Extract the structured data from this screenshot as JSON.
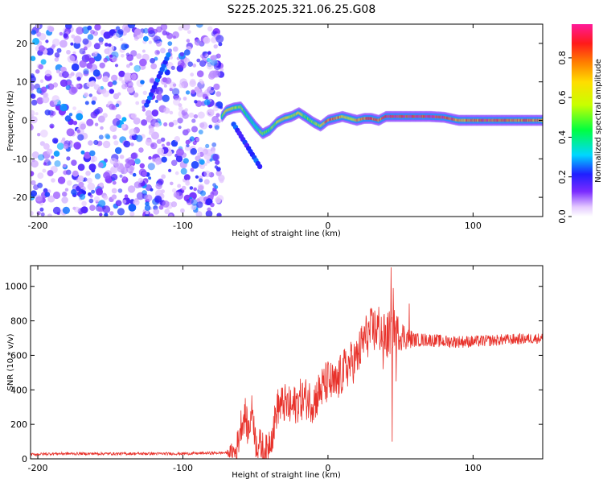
{
  "title": "S225.2025.321.06.25.G08",
  "chart_data": [
    {
      "type": "heatmap",
      "name": "spectrogram",
      "xlabel": "Height of straight line (km)",
      "ylabel": "Frequency (Hz)",
      "xlim": [
        -205,
        148
      ],
      "ylim": [
        -25,
        25
      ],
      "xticks": [
        -200,
        -100,
        0,
        100
      ],
      "xtick_labels": [
        "-200",
        "-100",
        "0",
        "100"
      ],
      "yticks": [
        20,
        10,
        0,
        -10,
        -20
      ],
      "ytick_labels": [
        "20",
        "10",
        "0",
        "-10",
        "-20"
      ],
      "colorbar": {
        "label": "Normalized spectral amplitude",
        "range": [
          0,
          0.97
        ],
        "ticks": [
          0.0,
          0.2,
          0.4,
          0.6,
          0.8
        ],
        "tick_labels": [
          "0.0",
          "0.2",
          "0.4",
          "0.6",
          "0.8"
        ]
      },
      "ridge": {
        "x": [
          -73,
          -70,
          -65,
          -60,
          -55,
          -50,
          -45,
          -40,
          -35,
          -30,
          -25,
          -20,
          -15,
          -10,
          -5,
          0,
          5,
          10,
          15,
          20,
          25,
          30,
          35,
          40,
          45,
          50,
          60,
          70,
          80,
          90,
          100,
          110,
          120,
          130,
          140,
          148
        ],
        "y": [
          1.0,
          2.5,
          3.2,
          3.5,
          1.0,
          -1.5,
          -3.5,
          -2.5,
          -0.5,
          0.5,
          1.0,
          2.0,
          0.8,
          -0.5,
          -1.5,
          0.0,
          0.5,
          1.0,
          0.5,
          0.0,
          0.5,
          0.5,
          0.0,
          1.0,
          1.0,
          1.0,
          1.0,
          1.0,
          0.8,
          0.0,
          0.0,
          0.0,
          0.0,
          0.0,
          0.0,
          0.0
        ],
        "amplitude": [
          0.45,
          0.7,
          0.6,
          0.55,
          0.4,
          0.35,
          0.55,
          0.5,
          0.6,
          0.7,
          0.55,
          0.65,
          0.5,
          0.55,
          0.6,
          0.9,
          0.85,
          0.7,
          0.6,
          0.75,
          0.85,
          0.9,
          0.8,
          0.95,
          0.95,
          0.95,
          0.95,
          0.95,
          0.95,
          0.8,
          0.85,
          0.9,
          0.85,
          0.8,
          0.85,
          0.8
        ]
      },
      "noise_region": {
        "x_from": -205,
        "x_to": -73,
        "amplitude_range": [
          0.05,
          0.3
        ]
      },
      "features": [
        {
          "from": [
            -125,
            4
          ],
          "to": [
            -110,
            17
          ],
          "amplitude": 0.25
        },
        {
          "from": [
            -65,
            -1
          ],
          "to": [
            -47,
            -12
          ],
          "amplitude": 0.25
        }
      ]
    },
    {
      "type": "line",
      "name": "snr",
      "xlabel": "Height of straight line (km)",
      "ylabel": "SNR (10 * v/v)",
      "xlim": [
        -205,
        148
      ],
      "ylim": [
        0,
        1120
      ],
      "xticks": [
        -200,
        -100,
        0,
        100
      ],
      "xtick_labels": [
        "-200",
        "-100",
        "0",
        "100"
      ],
      "yticks": [
        0,
        200,
        400,
        600,
        800,
        1000
      ],
      "ytick_labels": [
        "0",
        "200",
        "400",
        "600",
        "800",
        "1000"
      ],
      "color": "#e8322b",
      "envelope": {
        "x": [
          -205,
          -190,
          -150,
          -100,
          -70,
          -63,
          -60,
          -57,
          -55,
          -52,
          -50,
          -47,
          -45,
          -42,
          -40,
          -38,
          -35,
          -30,
          -25,
          -20,
          -15,
          -10,
          -5,
          0,
          5,
          10,
          15,
          20,
          25,
          30,
          35,
          40,
          45,
          50,
          55,
          60,
          70,
          80,
          100,
          120,
          148
        ],
        "y": [
          25,
          30,
          30,
          30,
          35,
          40,
          200,
          260,
          150,
          300,
          100,
          80,
          60,
          40,
          120,
          150,
          300,
          320,
          290,
          340,
          350,
          330,
          400,
          450,
          420,
          500,
          550,
          580,
          700,
          740,
          760,
          700,
          760,
          720,
          700,
          690,
          690,
          680,
          680,
          690,
          700
        ]
      },
      "noise_amplitude": {
        "x": [
          -205,
          -70,
          -63,
          -40,
          -30,
          0,
          20,
          30,
          40,
          60,
          148
        ],
        "y": [
          8,
          8,
          100,
          100,
          120,
          130,
          130,
          140,
          150,
          40,
          30
        ]
      },
      "spikes": [
        {
          "x": 43.5,
          "y": 1110
        },
        {
          "x": 44.2,
          "y": 100
        },
        {
          "x": 45.0,
          "y": 990
        },
        {
          "x": 56.0,
          "y": 900
        },
        {
          "x": 47.0,
          "y": 450
        },
        {
          "x": 38.0,
          "y": 520
        }
      ]
    }
  ]
}
